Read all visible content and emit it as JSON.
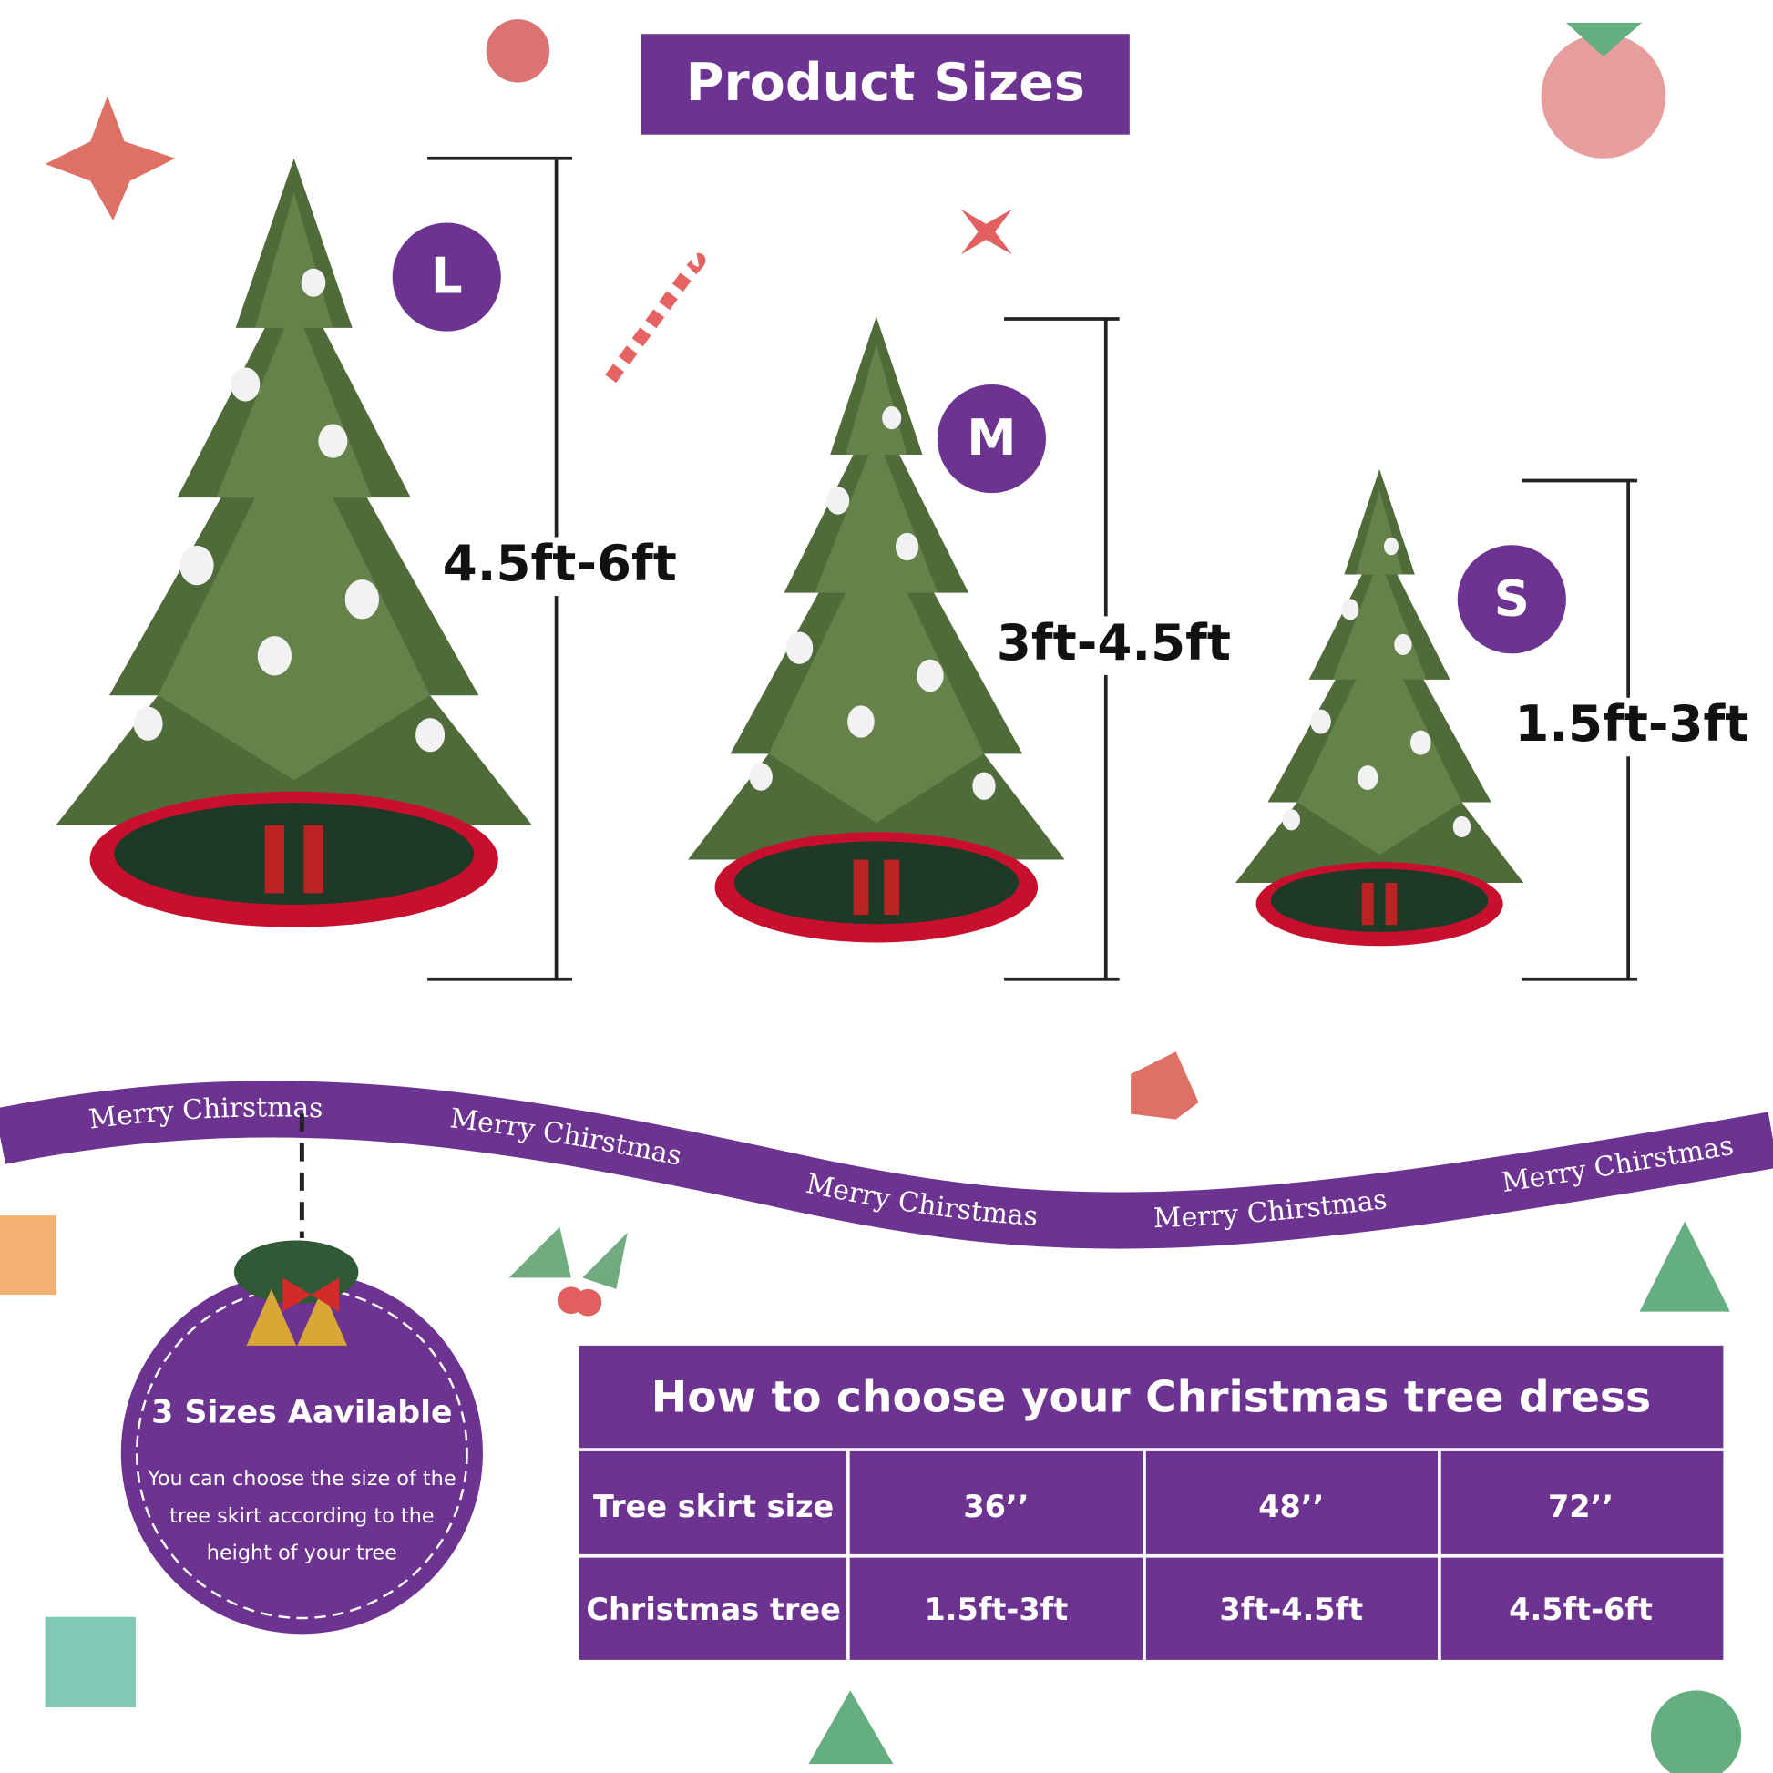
{
  "header": {
    "title": "Product Sizes"
  },
  "sizes": [
    {
      "badge": "L",
      "height": "4.5ft-6ft"
    },
    {
      "badge": "M",
      "height": "3ft-4.5ft"
    },
    {
      "badge": "S",
      "height": "1.5ft-3ft"
    }
  ],
  "ribbon": {
    "text": "Merry Chirstmas"
  },
  "badge": {
    "title": "3 Sizes Aavilable",
    "description_lines": [
      "You can choose the size of the",
      "tree skirt according to the",
      "height of your tree"
    ]
  },
  "table": {
    "title": "How to choose your Christmas tree dress",
    "rows": [
      [
        "Tree skirt size",
        "36’’",
        "48’’",
        "72’’"
      ],
      [
        "Christmas tree",
        "1.5ft-3ft",
        "3ft-4.5ft",
        "4.5ft-6ft"
      ]
    ]
  }
}
